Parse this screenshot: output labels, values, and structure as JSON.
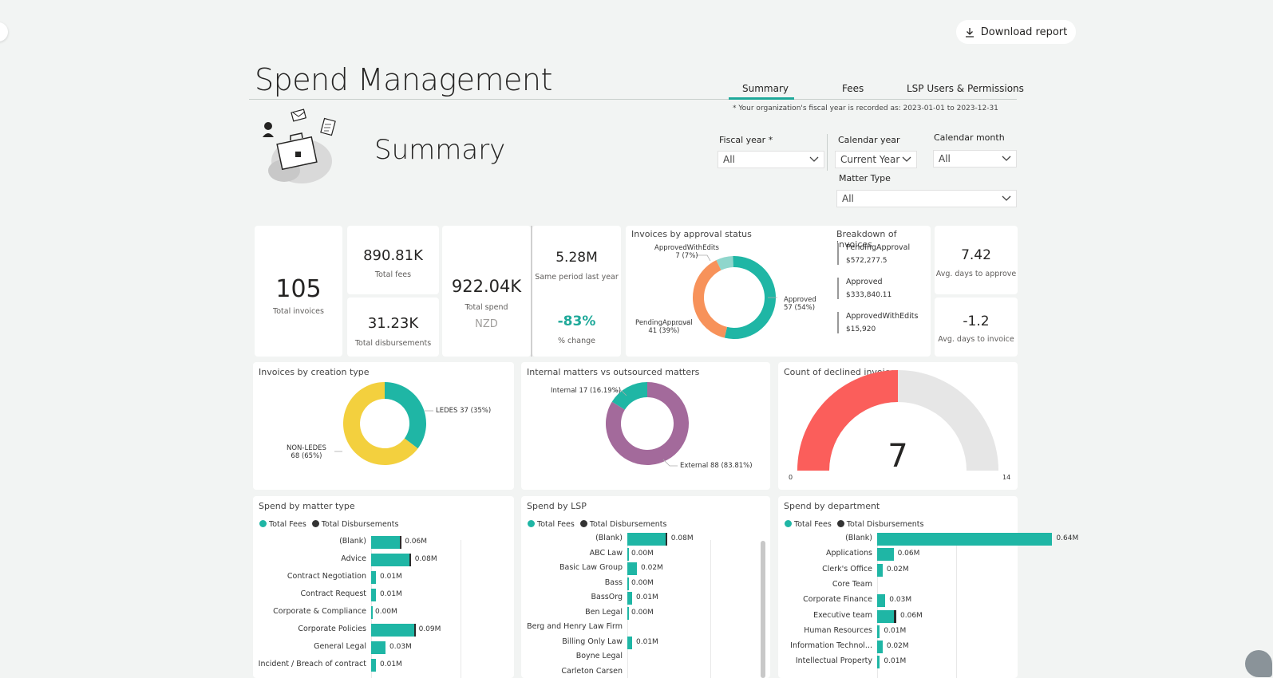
{
  "header": {
    "download_label": "Download report",
    "title": "Spend Management",
    "tabs": [
      "Summary",
      "Fees",
      "LSP Users & Permissions"
    ],
    "fiscal_note": "* Your organization's fiscal year is recorded as: 2023-01-01 to 2023-12-31",
    "section_title": "Summary"
  },
  "filters": {
    "fiscal_year": {
      "label": "Fiscal year *",
      "value": "All"
    },
    "calendar_year": {
      "label": "Calendar year",
      "value": "Current Year"
    },
    "calendar_month": {
      "label": "Calendar month",
      "value": "All"
    },
    "matter_type": {
      "label": "Matter Type",
      "value": "All"
    }
  },
  "kpis": {
    "total_invoices": {
      "value": "105",
      "label": "Total invoices"
    },
    "total_fees": {
      "value": "890.81K",
      "label": "Total fees"
    },
    "total_disbursements": {
      "value": "31.23K",
      "label": "Total disbursements"
    },
    "total_spend": {
      "value": "922.04K",
      "label": "Total spend",
      "currency": "NZD"
    },
    "same_period": {
      "value": "5.28M",
      "label": "Same period last year"
    },
    "pct_change": {
      "value": "-83%",
      "label": "% change"
    },
    "avg_approve": {
      "value": "7.42",
      "label": "Avg. days to approve"
    },
    "avg_invoice": {
      "value": "-1.2",
      "label": "Avg. days to invoice"
    }
  },
  "approval": {
    "title": "Invoices by approval status",
    "labels": {
      "approved_with_edits": "ApprovedWithEdits",
      "approved_with_edits_val": "7 (7%)",
      "approved": "Approved",
      "approved_val": "57 (54%)",
      "pending": "PendingApproval",
      "pending_val": "41 (39%)"
    },
    "breakdown_title": "Breakdown of invoices",
    "breakdown": [
      {
        "name": "PendingApproval",
        "value": "$572,277.5"
      },
      {
        "name": "Approved",
        "value": "$333,840.11"
      },
      {
        "name": "ApprovedWithEdits",
        "value": "$15,920"
      }
    ]
  },
  "creation": {
    "title": "Invoices by creation type",
    "ledes": "LEDES 37 (35%)",
    "non_ledes": "NON-LEDES",
    "non_ledes_val": "68 (65%)"
  },
  "matters": {
    "title": "Internal matters vs outsourced matters",
    "internal": "Internal 17 (16.19%)",
    "external": "External 88 (83.81%)"
  },
  "declined": {
    "title": "Count of declined invoices",
    "value": "7",
    "min": "0",
    "max": "14"
  },
  "legend": {
    "fees": "Total Fees",
    "disb": "Total Disbursements"
  },
  "colors": {
    "teal": "#1fb6a5",
    "orange": "#f7925a",
    "light_teal": "#8fd6cc",
    "yellow": "#f3d03e",
    "purple": "#a36a9b",
    "red": "#fb5e5b",
    "grey": "#e6e6e6"
  },
  "chart_data": [
    {
      "type": "pie",
      "title": "Invoices by approval status",
      "labels": [
        "Approved",
        "PendingApproval",
        "ApprovedWithEdits"
      ],
      "values": [
        57,
        41,
        7
      ]
    },
    {
      "type": "pie",
      "title": "Invoices by creation type",
      "labels": [
        "LEDES",
        "NON-LEDES"
      ],
      "values": [
        37,
        68
      ]
    },
    {
      "type": "pie",
      "title": "Internal matters vs outsourced matters",
      "labels": [
        "Internal",
        "External"
      ],
      "values": [
        17,
        88
      ]
    },
    {
      "type": "gauge",
      "title": "Count of declined invoices",
      "value": 7,
      "min": 0,
      "max": 14
    },
    {
      "type": "bar",
      "title": "Spend by matter type",
      "categories": [
        "(Blank)",
        "Advice",
        "Contract Negotiation",
        "Contract Request",
        "Corporate & Compliance",
        "Corporate Policies",
        "General Legal",
        "Incident / Breach of contract"
      ],
      "series": [
        {
          "name": "Total Fees",
          "values": [
            0.06,
            0.08,
            0.01,
            0.01,
            0.0,
            0.09,
            0.03,
            0.01
          ]
        },
        {
          "name": "Total Disbursements",
          "values": [
            0.002,
            0.003,
            0,
            0,
            0,
            0.001,
            0,
            0
          ]
        }
      ],
      "value_labels": [
        "0.06M",
        "0.08M",
        "0.01M",
        "0.01M",
        "0.00M",
        "0.09M",
        "0.03M",
        "0.01M"
      ],
      "max": 0.7
    },
    {
      "type": "bar",
      "title": "Spend by LSP",
      "categories": [
        "(Blank)",
        "ABC Law",
        "Basic Law Group",
        "Bass",
        "BassOrg",
        "Ben Legal",
        "Berg and Henry Law Firm",
        "Billing Only Law",
        "Boyne Legal",
        "Carleton Carsen"
      ],
      "series": [
        {
          "name": "Total Fees",
          "values": [
            0.08,
            0.0,
            0.02,
            0.0,
            0.01,
            0.0,
            0,
            0.01,
            0,
            0
          ]
        },
        {
          "name": "Total Disbursements",
          "values": [
            0.003,
            0,
            0,
            0,
            0,
            0,
            0,
            0,
            0,
            0
          ]
        }
      ],
      "value_labels": [
        "0.08M",
        "0.00M",
        "0.02M",
        "0.00M",
        "0.01M",
        "0.00M",
        "",
        "0.01M",
        "",
        ""
      ],
      "max": 0.7
    },
    {
      "type": "bar",
      "title": "Spend by department",
      "categories": [
        "(Blank)",
        "Applications",
        "Clerk's Office",
        "Core Team",
        "Corporate Finance",
        "Executive team",
        "Human Resources",
        "Information Technol...",
        "Intellectual Property"
      ],
      "series": [
        {
          "name": "Total Fees",
          "values": [
            0.64,
            0.06,
            0.02,
            0,
            0.03,
            0.06,
            0.01,
            0.02,
            0.01
          ]
        },
        {
          "name": "Total Disbursements",
          "values": [
            0,
            0,
            0,
            0,
            0,
            0.01,
            0,
            0,
            0
          ]
        }
      ],
      "value_labels": [
        "0.64M",
        "0.06M",
        "0.02M",
        "",
        "0.03M",
        "0.06M",
        "0.01M",
        "0.02M",
        "0.01M"
      ],
      "max": 0.7
    }
  ]
}
